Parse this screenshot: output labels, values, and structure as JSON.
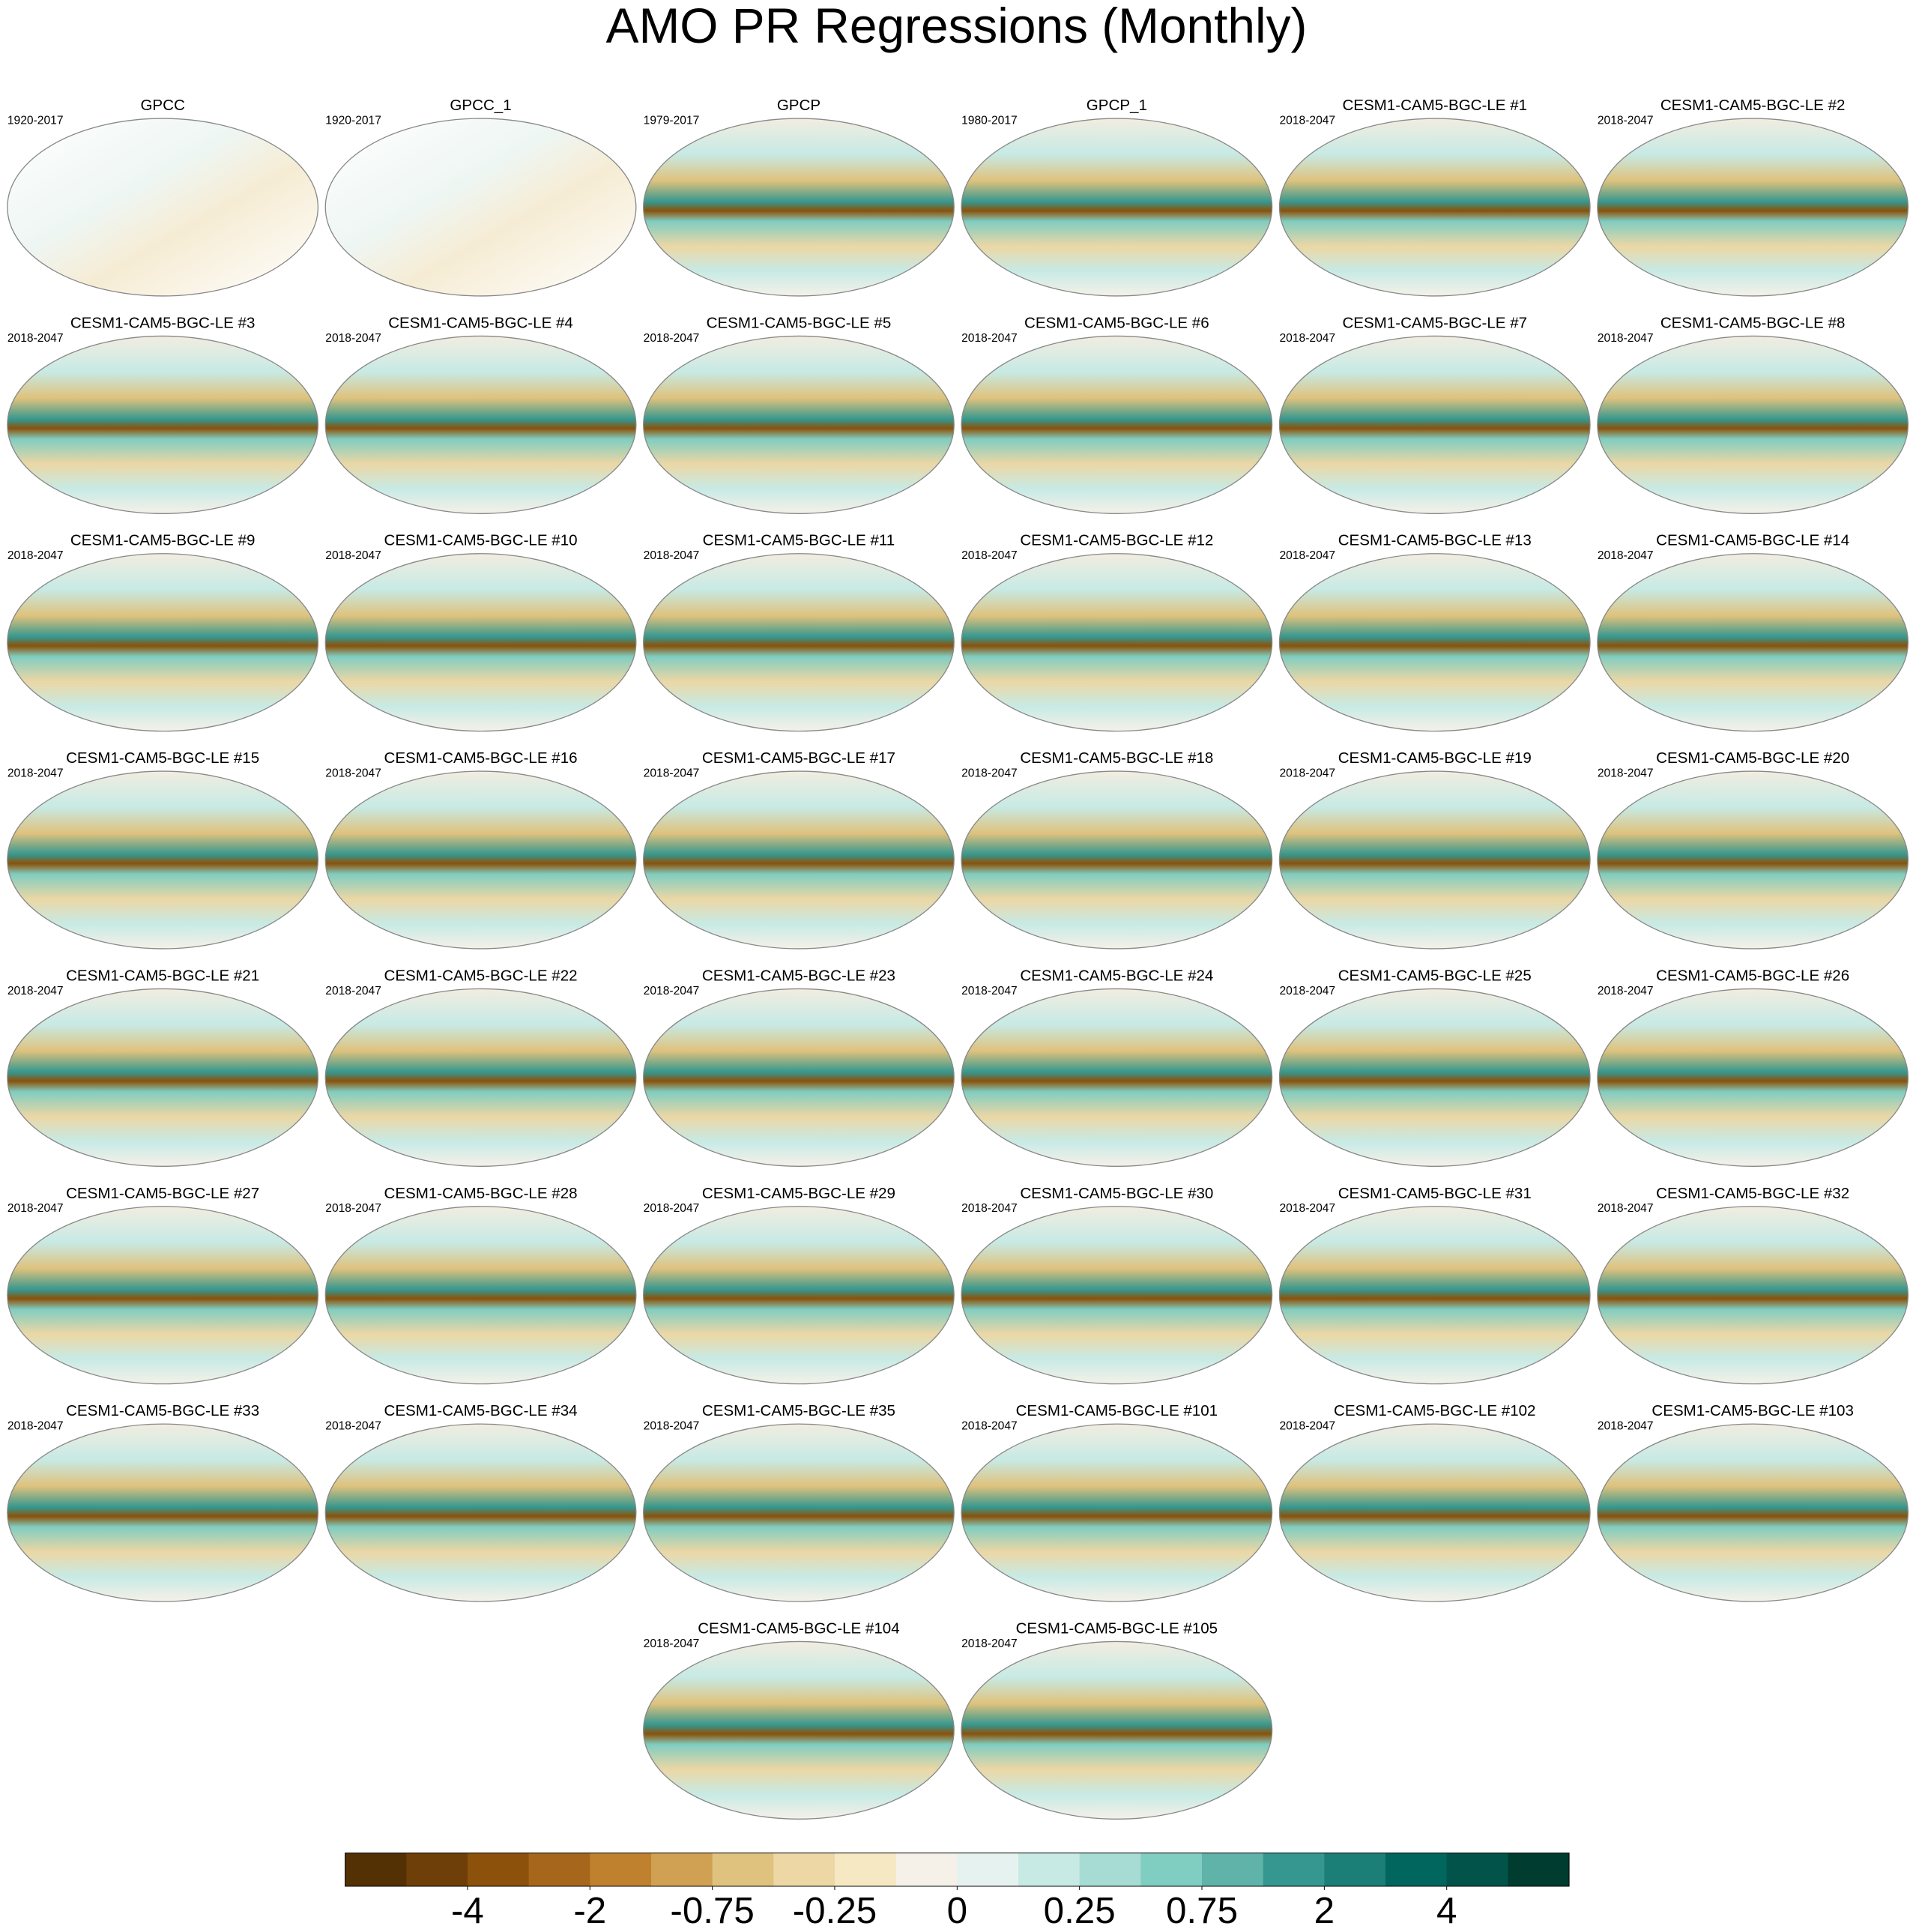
{
  "title": "AMO PR Regressions (Monthly)",
  "panels": [
    {
      "title": "GPCC",
      "period": "1920-2017"
    },
    {
      "title": "GPCC_1",
      "period": "1920-2017"
    },
    {
      "title": "GPCP",
      "period": "1979-2017"
    },
    {
      "title": "GPCP_1",
      "period": "1980-2017"
    },
    {
      "title": "CESM1-CAM5-BGC-LE #1",
      "period": "2018-2047"
    },
    {
      "title": "CESM1-CAM5-BGC-LE #2",
      "period": "2018-2047"
    },
    {
      "title": "CESM1-CAM5-BGC-LE #3",
      "period": "2018-2047"
    },
    {
      "title": "CESM1-CAM5-BGC-LE #4",
      "period": "2018-2047"
    },
    {
      "title": "CESM1-CAM5-BGC-LE #5",
      "period": "2018-2047"
    },
    {
      "title": "CESM1-CAM5-BGC-LE #6",
      "period": "2018-2047"
    },
    {
      "title": "CESM1-CAM5-BGC-LE #7",
      "period": "2018-2047"
    },
    {
      "title": "CESM1-CAM5-BGC-LE #8",
      "period": "2018-2047"
    },
    {
      "title": "CESM1-CAM5-BGC-LE #9",
      "period": "2018-2047"
    },
    {
      "title": "CESM1-CAM5-BGC-LE #10",
      "period": "2018-2047"
    },
    {
      "title": "CESM1-CAM5-BGC-LE #11",
      "period": "2018-2047"
    },
    {
      "title": "CESM1-CAM5-BGC-LE #12",
      "period": "2018-2047"
    },
    {
      "title": "CESM1-CAM5-BGC-LE #13",
      "period": "2018-2047"
    },
    {
      "title": "CESM1-CAM5-BGC-LE #14",
      "period": "2018-2047"
    },
    {
      "title": "CESM1-CAM5-BGC-LE #15",
      "period": "2018-2047"
    },
    {
      "title": "CESM1-CAM5-BGC-LE #16",
      "period": "2018-2047"
    },
    {
      "title": "CESM1-CAM5-BGC-LE #17",
      "period": "2018-2047"
    },
    {
      "title": "CESM1-CAM5-BGC-LE #18",
      "period": "2018-2047"
    },
    {
      "title": "CESM1-CAM5-BGC-LE #19",
      "period": "2018-2047"
    },
    {
      "title": "CESM1-CAM5-BGC-LE #20",
      "period": "2018-2047"
    },
    {
      "title": "CESM1-CAM5-BGC-LE #21",
      "period": "2018-2047"
    },
    {
      "title": "CESM1-CAM5-BGC-LE #22",
      "period": "2018-2047"
    },
    {
      "title": "CESM1-CAM5-BGC-LE #23",
      "period": "2018-2047"
    },
    {
      "title": "CESM1-CAM5-BGC-LE #24",
      "period": "2018-2047"
    },
    {
      "title": "CESM1-CAM5-BGC-LE #25",
      "period": "2018-2047"
    },
    {
      "title": "CESM1-CAM5-BGC-LE #26",
      "period": "2018-2047"
    },
    {
      "title": "CESM1-CAM5-BGC-LE #27",
      "period": "2018-2047"
    },
    {
      "title": "CESM1-CAM5-BGC-LE #28",
      "period": "2018-2047"
    },
    {
      "title": "CESM1-CAM5-BGC-LE #29",
      "period": "2018-2047"
    },
    {
      "title": "CESM1-CAM5-BGC-LE #30",
      "period": "2018-2047"
    },
    {
      "title": "CESM1-CAM5-BGC-LE #31",
      "period": "2018-2047"
    },
    {
      "title": "CESM1-CAM5-BGC-LE #32",
      "period": "2018-2047"
    },
    {
      "title": "CESM1-CAM5-BGC-LE #33",
      "period": "2018-2047"
    },
    {
      "title": "CESM1-CAM5-BGC-LE #34",
      "period": "2018-2047"
    },
    {
      "title": "CESM1-CAM5-BGC-LE #35",
      "period": "2018-2047"
    },
    {
      "title": "CESM1-CAM5-BGC-LE #101",
      "period": "2018-2047"
    },
    {
      "title": "CESM1-CAM5-BGC-LE #102",
      "period": "2018-2047"
    },
    {
      "title": "CESM1-CAM5-BGC-LE #103",
      "period": "2018-2047"
    },
    {
      "title": "CESM1-CAM5-BGC-LE #104",
      "period": "2018-2047"
    },
    {
      "title": "CESM1-CAM5-BGC-LE #105",
      "period": "2018-2047"
    }
  ],
  "colorbar": {
    "colors": [
      "#543005",
      "#6e3f08",
      "#8c510a",
      "#a6661c",
      "#bf812d",
      "#d0a153",
      "#dfc27d",
      "#ecd7a5",
      "#f6e8c3",
      "#f5f1e8",
      "#e6f2ef",
      "#c7eae5",
      "#a6dcd3",
      "#80cdc1",
      "#5fb3a9",
      "#35978f",
      "#1c7f77",
      "#01665e",
      "#02534a",
      "#003c30"
    ],
    "ticks": [
      -4,
      -2,
      -0.75,
      -0.25,
      0,
      0.25,
      0.75,
      2,
      4
    ]
  }
}
